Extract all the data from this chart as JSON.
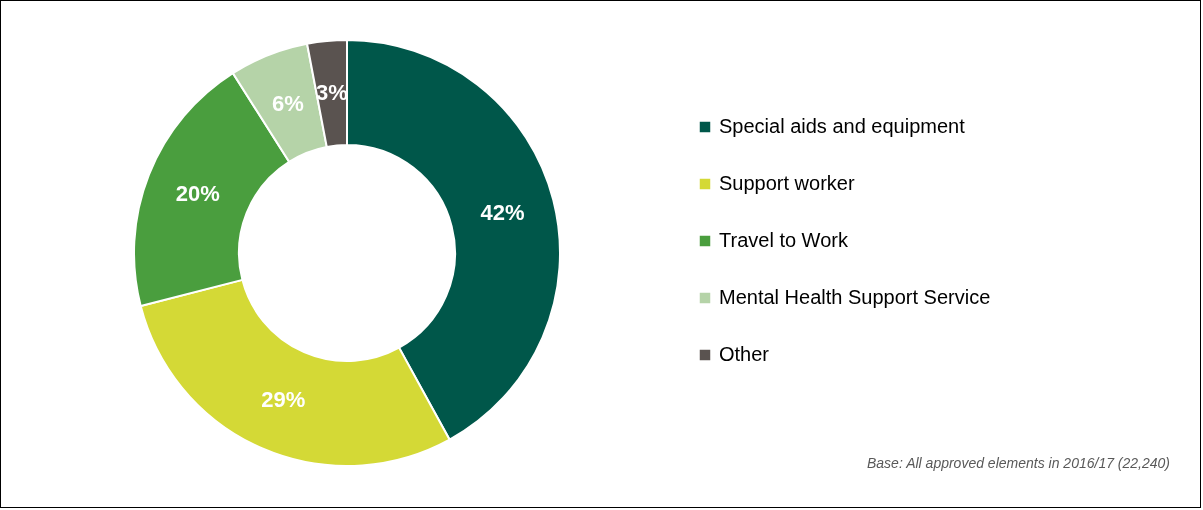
{
  "chart_data": {
    "type": "donut",
    "categories": [
      "Special aids and equipment",
      "Support worker",
      "Travel to Work",
      "Mental Health Support Service",
      "Other"
    ],
    "values": [
      42,
      29,
      20,
      6,
      3
    ],
    "colors": [
      "#00574a",
      "#d4d936",
      "#4a9e3e",
      "#b5d3a8",
      "#5a5350"
    ],
    "value_labels": [
      "42%",
      "29%",
      "20%",
      "6%",
      "3%"
    ],
    "legend": "right",
    "annotations": [
      "Base: All approved elements in 2016/17 (22,240)"
    ]
  }
}
